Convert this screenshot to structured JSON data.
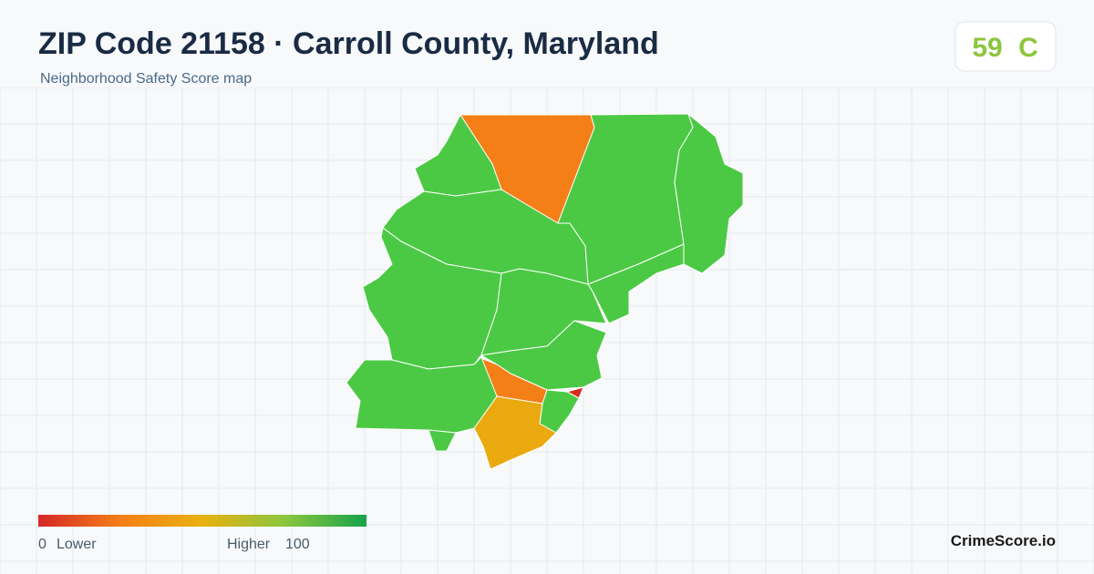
{
  "header": {
    "title": "ZIP Code 21158 · Carroll County, Maryland",
    "subtitle": "Neighborhood Safety Score map"
  },
  "score": {
    "value": "59",
    "grade": "C"
  },
  "legend": {
    "min": "0",
    "min_label": "Lower",
    "max_label": "Higher",
    "max": "100"
  },
  "brand": "CrimeScore.io"
}
